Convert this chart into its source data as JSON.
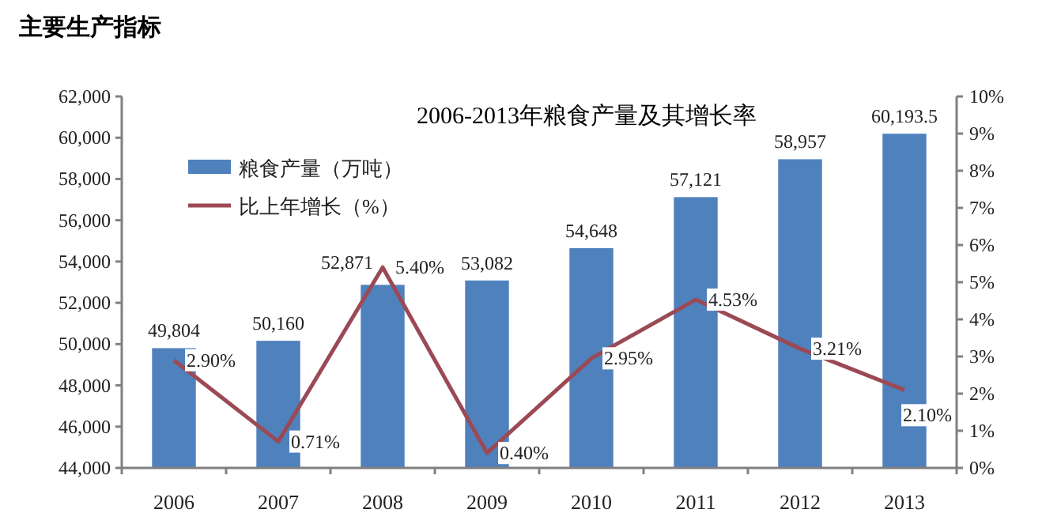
{
  "chart_data": {
    "type": "bar",
    "title": "2006-2013年粮食产量及其增长率",
    "annotations": [
      "主要生产指标"
    ],
    "categories": [
      "2006",
      "2007",
      "2008",
      "2009",
      "2010",
      "2011",
      "2012",
      "2013"
    ],
    "series": [
      {
        "name": "粮食产量（万吨）",
        "color": "#4f81bd",
        "values": [
          49804,
          50160,
          52871,
          53082,
          54648,
          57121,
          58957,
          60193.5
        ],
        "value_labels": [
          "49,804",
          "50,160",
          "52,871",
          "53,082",
          "54,648",
          "57,121",
          "58,957",
          "60,193.5"
        ]
      },
      {
        "name": "比上年增长（%）",
        "type": "line",
        "axis": "y2",
        "color": "#9b4a55",
        "marker": "none",
        "values": [
          2.9,
          0.71,
          5.4,
          0.4,
          2.95,
          4.53,
          3.21,
          2.1
        ],
        "value_labels": [
          "2.90%",
          "0.71%",
          "5.40%",
          "0.40%",
          "2.95%",
          "4.53%",
          "3.21%",
          "2.10%"
        ]
      }
    ],
    "ylim": [
      44000,
      62000
    ],
    "yticks": [
      {
        "value": 44000,
        "label": "44,000"
      },
      {
        "value": 46000,
        "label": "46,000"
      },
      {
        "value": 48000,
        "label": "48,000"
      },
      {
        "value": 50000,
        "label": "50,000"
      },
      {
        "value": 52000,
        "label": "52,000"
      },
      {
        "value": 54000,
        "label": "54,000"
      },
      {
        "value": 56000,
        "label": "56,000"
      },
      {
        "value": 58000,
        "label": "58,000"
      },
      {
        "value": 60000,
        "label": "60,000"
      },
      {
        "value": 62000,
        "label": "62,000"
      }
    ],
    "y2lim": [
      0,
      10
    ],
    "y2ticks": [
      {
        "value": 0,
        "label": "0%"
      },
      {
        "value": 1,
        "label": "1%"
      },
      {
        "value": 2,
        "label": "2%"
      },
      {
        "value": 3,
        "label": "3%"
      },
      {
        "value": 4,
        "label": "4%"
      },
      {
        "value": 5,
        "label": "5%"
      },
      {
        "value": 6,
        "label": "6%"
      },
      {
        "value": 7,
        "label": "7%"
      },
      {
        "value": 8,
        "label": "8%"
      },
      {
        "value": 9,
        "label": "9%"
      },
      {
        "value": 10,
        "label": "10%"
      }
    ],
    "grid": false,
    "legend": "top left"
  }
}
